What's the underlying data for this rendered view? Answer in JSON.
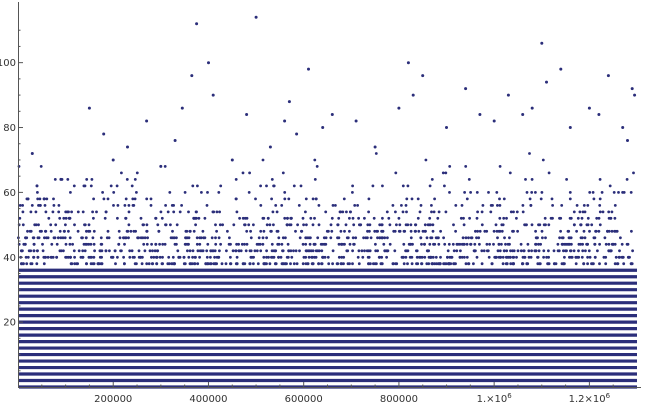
{
  "chart_data": {
    "type": "scatter",
    "title": "",
    "xlabel": "",
    "ylabel": "",
    "xlim": [
      0,
      1300000
    ],
    "ylim": [
      0,
      115
    ],
    "grid": false,
    "point_color": "#2b2e7a",
    "x_ticks": [
      {
        "value": 200000,
        "label": "200000"
      },
      {
        "value": 400000,
        "label": "400000"
      },
      {
        "value": 600000,
        "label": "600000"
      },
      {
        "value": 800000,
        "label": "800000"
      },
      {
        "value": 1000000,
        "label": "1.×10",
        "exp": "6"
      },
      {
        "value": 1200000,
        "label": "1.2×10",
        "exp": "6"
      }
    ],
    "y_ticks": [
      {
        "value": 20,
        "label": "20"
      },
      {
        "value": 40,
        "label": "40"
      },
      {
        "value": 60,
        "label": "60"
      },
      {
        "value": 80,
        "label": "80"
      },
      {
        "value": 100,
        "label": "100"
      }
    ],
    "dense_band_max_y": 36,
    "outlier_points": [
      {
        "x": 30000,
        "y": 72
      },
      {
        "x": 40000,
        "y": 62
      },
      {
        "x": 55000,
        "y": 58
      },
      {
        "x": 90000,
        "y": 64
      },
      {
        "x": 150000,
        "y": 86
      },
      {
        "x": 180000,
        "y": 78
      },
      {
        "x": 200000,
        "y": 70
      },
      {
        "x": 230000,
        "y": 74
      },
      {
        "x": 270000,
        "y": 82
      },
      {
        "x": 300000,
        "y": 68
      },
      {
        "x": 330000,
        "y": 76
      },
      {
        "x": 345000,
        "y": 86
      },
      {
        "x": 365000,
        "y": 96
      },
      {
        "x": 375000,
        "y": 112
      },
      {
        "x": 400000,
        "y": 100
      },
      {
        "x": 410000,
        "y": 90
      },
      {
        "x": 450000,
        "y": 70
      },
      {
        "x": 480000,
        "y": 84
      },
      {
        "x": 500000,
        "y": 114
      },
      {
        "x": 530000,
        "y": 74
      },
      {
        "x": 560000,
        "y": 82
      },
      {
        "x": 570000,
        "y": 88
      },
      {
        "x": 585000,
        "y": 78
      },
      {
        "x": 610000,
        "y": 98
      },
      {
        "x": 640000,
        "y": 80
      },
      {
        "x": 660000,
        "y": 84
      },
      {
        "x": 710000,
        "y": 82
      },
      {
        "x": 750000,
        "y": 74
      },
      {
        "x": 800000,
        "y": 86
      },
      {
        "x": 820000,
        "y": 100
      },
      {
        "x": 830000,
        "y": 90
      },
      {
        "x": 850000,
        "y": 96
      },
      {
        "x": 900000,
        "y": 80
      },
      {
        "x": 940000,
        "y": 92
      },
      {
        "x": 970000,
        "y": 84
      },
      {
        "x": 1000000,
        "y": 82
      },
      {
        "x": 1030000,
        "y": 90
      },
      {
        "x": 1060000,
        "y": 84
      },
      {
        "x": 1080000,
        "y": 86
      },
      {
        "x": 1100000,
        "y": 106
      },
      {
        "x": 1110000,
        "y": 94
      },
      {
        "x": 1140000,
        "y": 98
      },
      {
        "x": 1160000,
        "y": 80
      },
      {
        "x": 1200000,
        "y": 86
      },
      {
        "x": 1220000,
        "y": 84
      },
      {
        "x": 1240000,
        "y": 96
      },
      {
        "x": 1270000,
        "y": 80
      },
      {
        "x": 1290000,
        "y": 92
      },
      {
        "x": 1295000,
        "y": 90
      },
      {
        "x": 1280000,
        "y": 76
      }
    ]
  }
}
